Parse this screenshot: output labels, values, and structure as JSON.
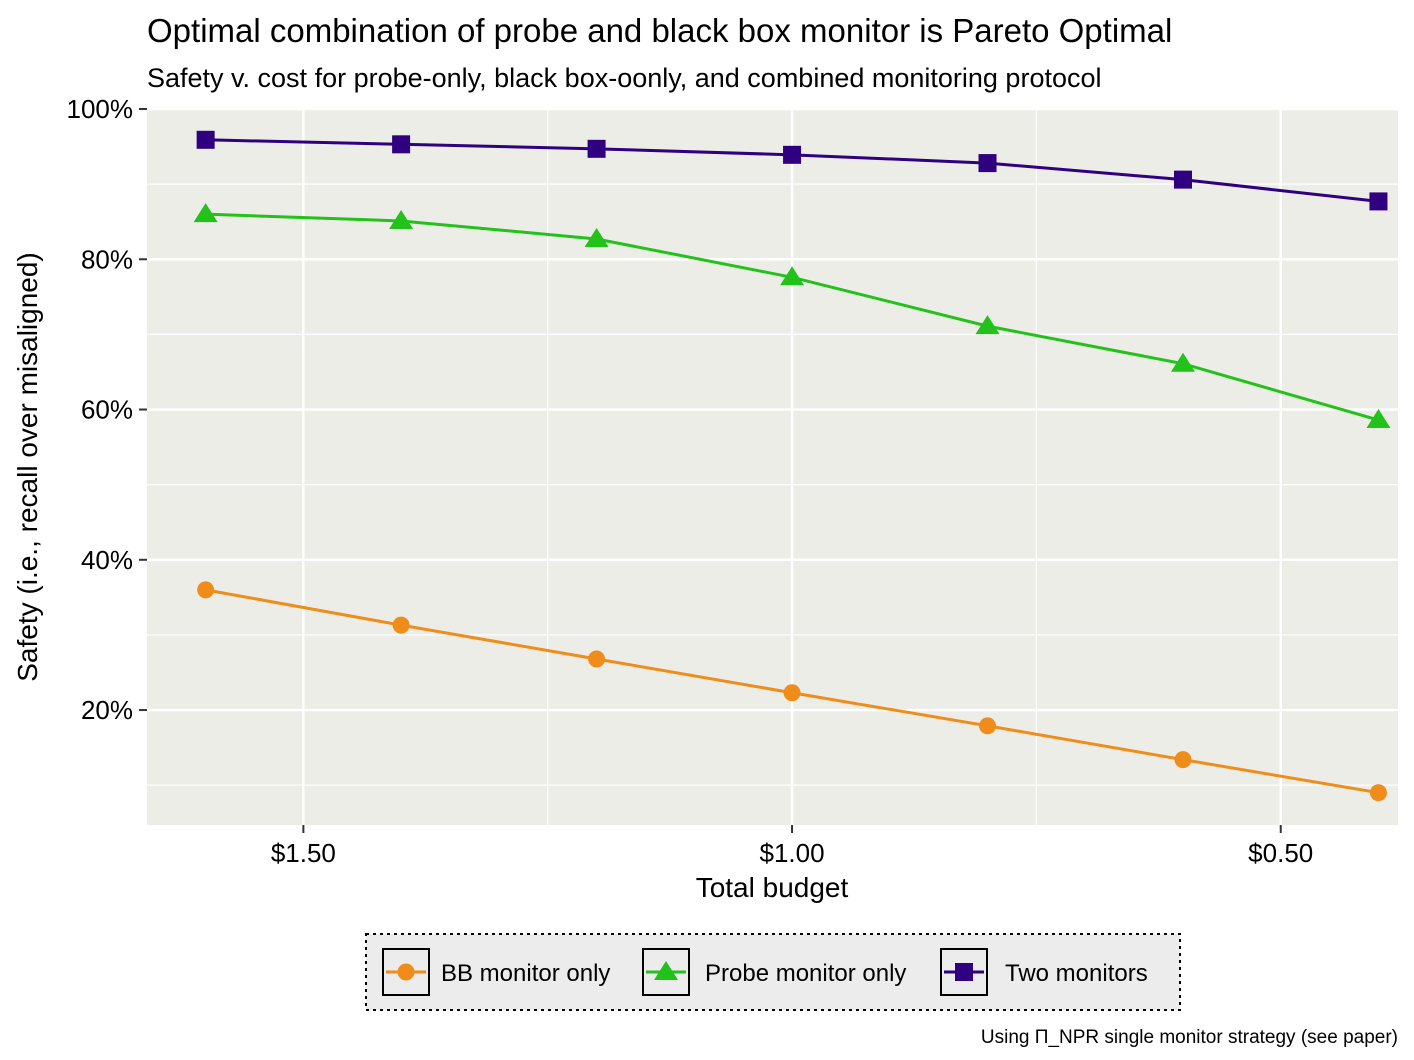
{
  "chart_data": {
    "type": "line",
    "title": "Optimal combination of probe and black box monitor is Pareto Optimal",
    "subtitle": "Safety v. cost for probe-only, black box-oonly, and combined monitoring protocol",
    "xlabel": "Total budget",
    "ylabel": "Safety (i.e., recall over misaligned)",
    "caption": "Using Π_NPR single monitor strategy (see paper)",
    "x_scale": "reversed",
    "x": [
      1.6,
      1.4,
      1.2,
      1.0,
      0.8,
      0.6,
      0.4
    ],
    "xlim": [
      1.66,
      0.38
    ],
    "ylim": [
      0.047,
      1.0
    ],
    "x_ticks": [
      {
        "value": 1.5,
        "label": "$1.50"
      },
      {
        "value": 1.0,
        "label": "$1.00"
      },
      {
        "value": 0.5,
        "label": "$0.50"
      }
    ],
    "y_ticks": [
      {
        "value": 0.2,
        "label": "20%"
      },
      {
        "value": 0.4,
        "label": "40%"
      },
      {
        "value": 0.6,
        "label": "60%"
      },
      {
        "value": 0.8,
        "label": "80%"
      },
      {
        "value": 1.0,
        "label": "100%"
      }
    ],
    "series": [
      {
        "name": "BB monitor only",
        "color": "#f08c1a",
        "marker": "circle",
        "values": [
          0.36,
          0.313,
          0.268,
          0.223,
          0.179,
          0.134,
          0.09
        ]
      },
      {
        "name": "Probe monitor only",
        "color": "#22c21a",
        "marker": "triangle",
        "values": [
          0.86,
          0.851,
          0.827,
          0.776,
          0.711,
          0.661,
          0.586
        ]
      },
      {
        "name": "Two monitors",
        "color": "#2f007f",
        "marker": "square",
        "values": [
          0.959,
          0.953,
          0.947,
          0.939,
          0.928,
          0.906,
          0.877
        ]
      }
    ],
    "grid": true,
    "legend_position": "bottom"
  }
}
